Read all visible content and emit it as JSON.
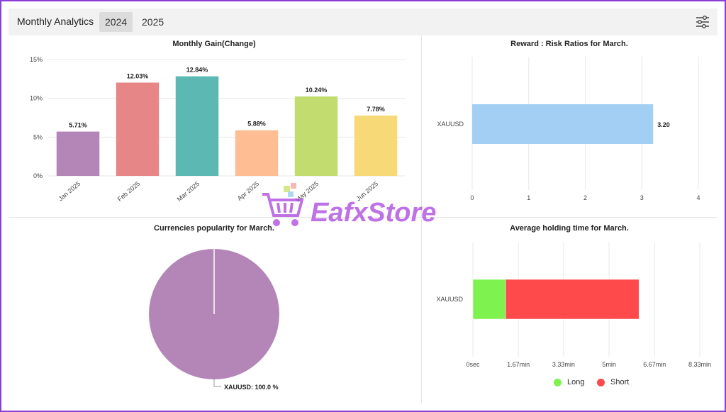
{
  "header": {
    "title": "Monthly Analytics",
    "tabs": [
      {
        "label": "2024",
        "active": true
      },
      {
        "label": "2025",
        "active": false
      }
    ],
    "filter_icon": "sliders-icon"
  },
  "watermark": {
    "text": "EafxStore",
    "icon": "shopping-cart-icon"
  },
  "chart_data": [
    {
      "type": "bar",
      "title": "Monthly Gain(Change)",
      "categories": [
        "Jan 2025",
        "Feb 2025",
        "Mar 2025",
        "Apr 2025",
        "May 2025",
        "Jun 2025"
      ],
      "values": [
        5.71,
        12.03,
        12.84,
        5.88,
        10.24,
        7.78
      ],
      "data_labels": [
        "5.71%",
        "12.03%",
        "12.84%",
        "5.88%",
        "10.24%",
        "7.78%"
      ],
      "colors": [
        "#b486b8",
        "#e68686",
        "#5bb8b3",
        "#ffbd94",
        "#c2dc70",
        "#f8d978"
      ],
      "ylim": [
        0,
        15
      ],
      "yticks": [
        0,
        5,
        10,
        15
      ],
      "ytick_labels": [
        "0%",
        "5%",
        "10%",
        "15%"
      ],
      "grid": true
    },
    {
      "type": "bar",
      "orientation": "horizontal",
      "title": "Reward : Risk Ratios for March.",
      "categories": [
        "XAUUSD"
      ],
      "values": [
        3.2
      ],
      "data_labels": [
        "3.20"
      ],
      "color": "#a3cff5",
      "xlim": [
        0,
        4
      ],
      "xticks": [
        0,
        1,
        2,
        3,
        4
      ],
      "xtick_labels": [
        "0",
        "1",
        "2",
        "3",
        "4"
      ],
      "grid": true
    },
    {
      "type": "pie",
      "title": "Currencies popularity for March.",
      "labels": [
        "XAUUSD"
      ],
      "values": [
        100.0
      ],
      "data_labels": [
        "XAUUSD: 100.0 %"
      ],
      "colors": [
        "#b486b8"
      ]
    },
    {
      "type": "bar",
      "orientation": "horizontal",
      "stacked": true,
      "title": "Average holding time for March.",
      "categories": [
        "XAUUSD"
      ],
      "series": [
        {
          "name": "Long",
          "values": [
            1.2
          ],
          "color": "#7ef24e"
        },
        {
          "name": "Short",
          "values": [
            4.9
          ],
          "color": "#fe4a4a"
        }
      ],
      "xlim": [
        0,
        8.33
      ],
      "xticks": [
        0,
        1.67,
        3.33,
        5,
        6.67,
        8.33
      ],
      "xtick_labels": [
        "0sec",
        "1.67min",
        "3.33min",
        "5min",
        "6.67min",
        "8.33min"
      ],
      "legend_position": "bottom",
      "grid": true
    }
  ]
}
